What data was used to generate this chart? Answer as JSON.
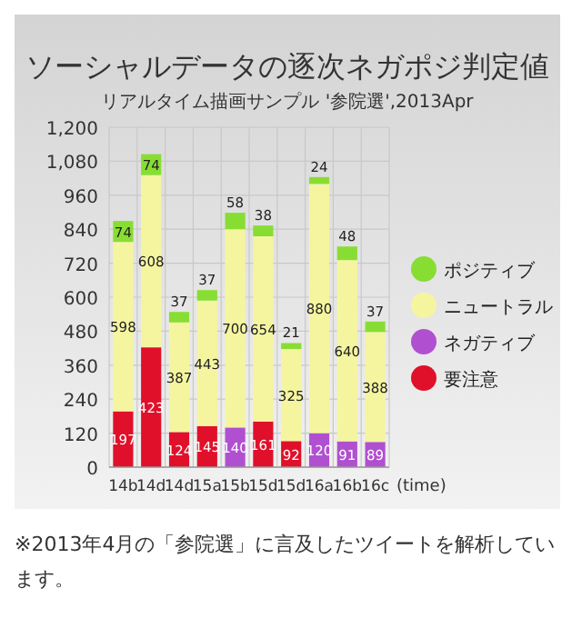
{
  "chart_data": {
    "type": "bar",
    "stacked": true,
    "title": "ソーシャルデータの逐次ネガポジ判定値",
    "subtitle": "リアルタイム描画サンプル '参院選',2013Apr",
    "xlabel": "(time)",
    "categories": [
      "14b",
      "14d",
      "14d",
      "15a",
      "15b",
      "15d",
      "15d",
      "16a",
      "16b",
      "16c"
    ],
    "series": [
      {
        "name": "要注意",
        "color": "#e0102a",
        "values": [
          197,
          423,
          124,
          145,
          null,
          161,
          92,
          null,
          null,
          null
        ]
      },
      {
        "name": "ネガティブ",
        "color": "#b050d0",
        "values": [
          null,
          null,
          null,
          null,
          140,
          null,
          null,
          120,
          91,
          89
        ]
      },
      {
        "name": "ニュートラル",
        "color": "#f5f5a0",
        "values": [
          598,
          608,
          387,
          443,
          700,
          654,
          325,
          880,
          640,
          388
        ]
      },
      {
        "name": "ポジティブ",
        "color": "#88dd33",
        "values": [
          74,
          74,
          37,
          37,
          58,
          38,
          21,
          24,
          48,
          37
        ]
      }
    ],
    "ylim": [
      0,
      1200
    ],
    "yticks": [
      0,
      120,
      240,
      360,
      480,
      600,
      720,
      840,
      960,
      {
        "value": 1080,
        "label": "1,080"
      },
      {
        "value": 1200,
        "label": "1,200"
      }
    ],
    "grid": true,
    "legend": "right",
    "data_labels": true,
    "annotations": [
      "※2013年4月の「参院選」に言及したツイートを解析しています。"
    ]
  }
}
